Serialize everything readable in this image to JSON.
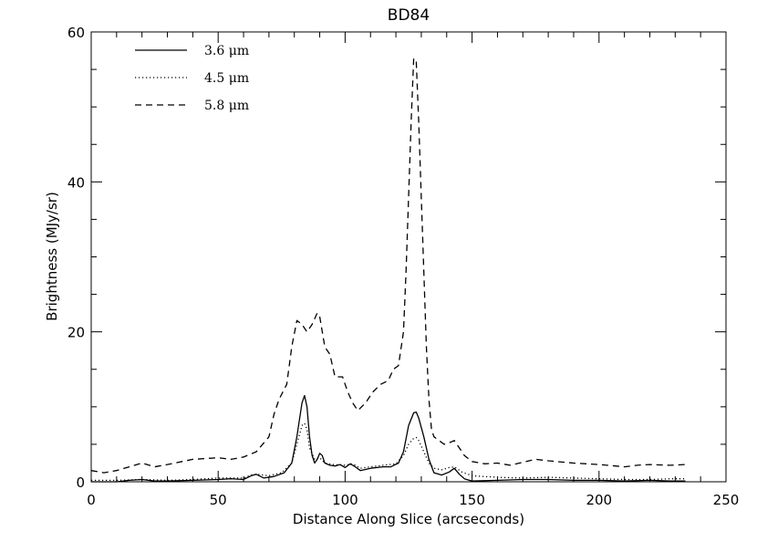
{
  "chart_data": {
    "type": "line",
    "title": "BD84",
    "xlabel": "Distance Along Slice (arcseconds)",
    "ylabel": "Brightness (MJy/sr)",
    "xlim": [
      0,
      250
    ],
    "ylim": [
      0,
      60
    ],
    "x_ticks": [
      0,
      50,
      100,
      150,
      200,
      250
    ],
    "y_ticks": [
      0,
      20,
      40,
      60
    ],
    "x_tick_labels": [
      "0",
      "50",
      "100",
      "150",
      "200",
      "250"
    ],
    "y_tick_labels": [
      "0",
      "20",
      "40",
      "60"
    ],
    "grid": false,
    "legend_position": "top-left",
    "series": [
      {
        "name": "3.6 μm",
        "style": "solid",
        "color": "#000000",
        "points": [
          [
            0,
            0
          ],
          [
            10,
            0
          ],
          [
            15,
            0.2
          ],
          [
            20,
            0.3
          ],
          [
            25,
            0.1
          ],
          [
            30,
            0.1
          ],
          [
            40,
            0.2
          ],
          [
            50,
            0.3
          ],
          [
            55,
            0.4
          ],
          [
            60,
            0.3
          ],
          [
            63,
            0.8
          ],
          [
            65,
            1.0
          ],
          [
            68,
            0.5
          ],
          [
            72,
            0.7
          ],
          [
            76,
            1.2
          ],
          [
            79,
            2.5
          ],
          [
            81,
            6
          ],
          [
            83,
            10.5
          ],
          [
            84,
            11.5
          ],
          [
            85,
            10
          ],
          [
            86,
            6
          ],
          [
            87,
            3.5
          ],
          [
            88,
            2.5
          ],
          [
            89,
            3
          ],
          [
            90,
            3.8
          ],
          [
            91,
            3.5
          ],
          [
            92,
            2.5
          ],
          [
            94,
            2.2
          ],
          [
            96,
            2.1
          ],
          [
            98,
            2.3
          ],
          [
            100,
            1.9
          ],
          [
            102,
            2.4
          ],
          [
            104,
            2.0
          ],
          [
            106,
            1.5
          ],
          [
            110,
            1.8
          ],
          [
            115,
            2.0
          ],
          [
            118,
            2.0
          ],
          [
            121,
            2.5
          ],
          [
            123,
            4
          ],
          [
            125,
            7.5
          ],
          [
            127,
            9.2
          ],
          [
            128,
            9.3
          ],
          [
            129,
            8.5
          ],
          [
            131,
            6
          ],
          [
            133,
            3
          ],
          [
            135,
            1.2
          ],
          [
            138,
            0.9
          ],
          [
            141,
            1.3
          ],
          [
            143,
            1.8
          ],
          [
            145,
            1.0
          ],
          [
            147,
            0.4
          ],
          [
            150,
            0.1
          ],
          [
            160,
            0.2
          ],
          [
            170,
            0.3
          ],
          [
            180,
            0.3
          ],
          [
            190,
            0.2
          ],
          [
            200,
            0.2
          ],
          [
            210,
            0.1
          ],
          [
            220,
            0.2
          ],
          [
            228,
            0.1
          ],
          [
            234,
            0.1
          ]
        ]
      },
      {
        "name": "4.5 μm",
        "style": "dotted",
        "color": "#000000",
        "points": [
          [
            0,
            0.2
          ],
          [
            10,
            0.2
          ],
          [
            20,
            0.3
          ],
          [
            30,
            0.2
          ],
          [
            40,
            0.3
          ],
          [
            50,
            0.5
          ],
          [
            60,
            0.5
          ],
          [
            63,
            0.9
          ],
          [
            65,
            1.0
          ],
          [
            70,
            0.8
          ],
          [
            75,
            1.2
          ],
          [
            79,
            2.5
          ],
          [
            81,
            5
          ],
          [
            83,
            7.5
          ],
          [
            84,
            7.8
          ],
          [
            85,
            7
          ],
          [
            86,
            4.5
          ],
          [
            88,
            3
          ],
          [
            90,
            3.2
          ],
          [
            92,
            2.5
          ],
          [
            95,
            2.3
          ],
          [
            100,
            2.2
          ],
          [
            103,
            2.4
          ],
          [
            106,
            1.8
          ],
          [
            110,
            2.0
          ],
          [
            115,
            2.2
          ],
          [
            120,
            2.4
          ],
          [
            123,
            3.5
          ],
          [
            125,
            5
          ],
          [
            127,
            5.8
          ],
          [
            128,
            5.9
          ],
          [
            129,
            5.5
          ],
          [
            131,
            4
          ],
          [
            133,
            2.5
          ],
          [
            135,
            1.8
          ],
          [
            138,
            1.6
          ],
          [
            141,
            1.9
          ],
          [
            143,
            2.0
          ],
          [
            146,
            1.3
          ],
          [
            150,
            0.8
          ],
          [
            160,
            0.6
          ],
          [
            170,
            0.5
          ],
          [
            180,
            0.6
          ],
          [
            190,
            0.5
          ],
          [
            200,
            0.4
          ],
          [
            210,
            0.3
          ],
          [
            220,
            0.3
          ],
          [
            228,
            0.4
          ],
          [
            234,
            0.4
          ]
        ]
      },
      {
        "name": "5.8 μm",
        "style": "dashed",
        "color": "#000000",
        "points": [
          [
            0,
            1.5
          ],
          [
            5,
            1.2
          ],
          [
            10,
            1.5
          ],
          [
            15,
            2.0
          ],
          [
            20,
            2.5
          ],
          [
            25,
            2.0
          ],
          [
            30,
            2.3
          ],
          [
            40,
            3.0
          ],
          [
            50,
            3.2
          ],
          [
            55,
            3.0
          ],
          [
            60,
            3.3
          ],
          [
            65,
            4.0
          ],
          [
            70,
            6
          ],
          [
            72,
            9
          ],
          [
            74,
            11
          ],
          [
            77,
            13
          ],
          [
            79,
            18
          ],
          [
            81,
            21.5
          ],
          [
            83,
            21
          ],
          [
            85,
            20
          ],
          [
            87,
            21
          ],
          [
            89,
            22.5
          ],
          [
            90,
            22
          ],
          [
            92,
            18
          ],
          [
            94,
            17
          ],
          [
            96,
            14
          ],
          [
            99,
            14
          ],
          [
            101,
            12
          ],
          [
            103,
            10.5
          ],
          [
            105,
            9.5
          ],
          [
            108,
            10.5
          ],
          [
            111,
            12
          ],
          [
            114,
            13
          ],
          [
            117,
            13.5
          ],
          [
            119,
            15
          ],
          [
            121,
            15.5
          ],
          [
            123,
            20
          ],
          [
            124,
            28
          ],
          [
            125,
            38
          ],
          [
            126,
            48
          ],
          [
            127,
            56.5
          ],
          [
            128,
            56
          ],
          [
            129,
            48
          ],
          [
            130,
            38
          ],
          [
            131,
            28
          ],
          [
            132,
            18
          ],
          [
            133,
            11
          ],
          [
            134,
            7
          ],
          [
            135,
            6
          ],
          [
            137,
            5.5
          ],
          [
            139,
            5.0
          ],
          [
            141,
            5.2
          ],
          [
            143,
            5.5
          ],
          [
            145,
            4.5
          ],
          [
            147,
            3.5
          ],
          [
            150,
            2.7
          ],
          [
            155,
            2.4
          ],
          [
            160,
            2.5
          ],
          [
            165,
            2.2
          ],
          [
            170,
            2.6
          ],
          [
            175,
            3.0
          ],
          [
            180,
            2.8
          ],
          [
            190,
            2.5
          ],
          [
            200,
            2.3
          ],
          [
            210,
            2.0
          ],
          [
            215,
            2.2
          ],
          [
            220,
            2.3
          ],
          [
            228,
            2.2
          ],
          [
            234,
            2.3
          ]
        ]
      }
    ]
  }
}
